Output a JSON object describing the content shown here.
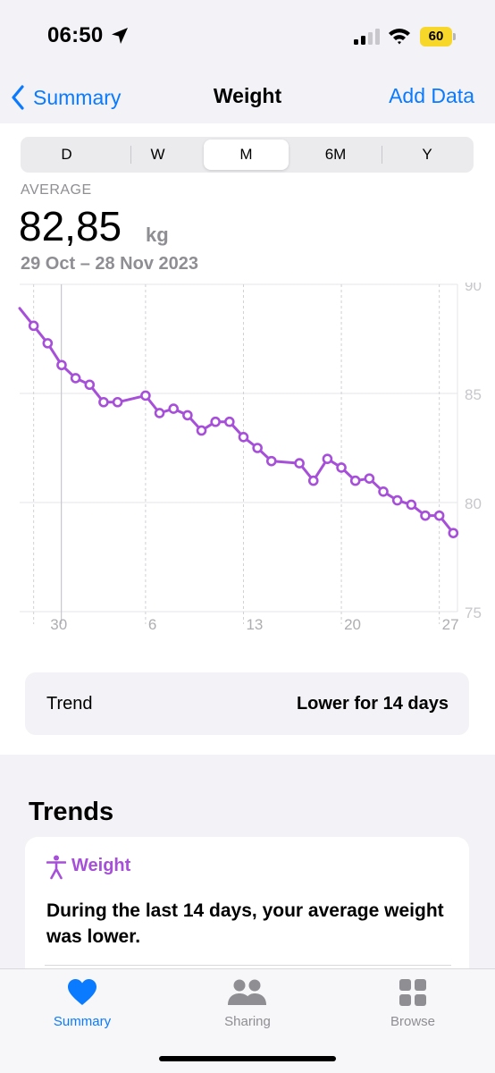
{
  "status": {
    "time": "06:50",
    "battery": "60"
  },
  "nav": {
    "back_label": "Summary",
    "title": "Weight",
    "add_label": "Add Data"
  },
  "segments": [
    "D",
    "W",
    "M",
    "6M",
    "Y"
  ],
  "selected_segment": "M",
  "summary": {
    "label": "AVERAGE",
    "value": "82,85",
    "unit": "kg",
    "range": "29 Oct – 28 Nov 2023"
  },
  "chart_data": {
    "type": "line",
    "x": [
      "28 Oct",
      "29 Oct",
      "30 Oct",
      "31 Oct",
      "1 Nov",
      "2 Nov",
      "3 Nov",
      "4 Nov",
      "5 Nov",
      "6 Nov",
      "7 Nov",
      "8 Nov",
      "9 Nov",
      "10 Nov",
      "11 Nov",
      "12 Nov",
      "13 Nov",
      "14 Nov",
      "15 Nov",
      "16 Nov",
      "17 Nov",
      "18 Nov",
      "19 Nov",
      "20 Nov",
      "21 Nov",
      "22 Nov",
      "23 Nov",
      "24 Nov",
      "25 Nov",
      "26 Nov",
      "27 Nov",
      "28 Nov"
    ],
    "values": [
      88.9,
      88.1,
      87.3,
      86.3,
      85.7,
      85.4,
      84.6,
      84.6,
      null,
      84.9,
      84.1,
      84.3,
      84.0,
      83.3,
      83.7,
      83.7,
      83.0,
      82.5,
      81.9,
      null,
      81.8,
      81.0,
      82.0,
      81.6,
      81.0,
      81.1,
      80.5,
      80.1,
      79.9,
      79.4,
      79.4,
      78.6
    ],
    "points": [
      false,
      true,
      true,
      true,
      true,
      true,
      true,
      true,
      false,
      true,
      true,
      true,
      true,
      true,
      true,
      true,
      true,
      true,
      true,
      false,
      true,
      true,
      true,
      true,
      true,
      true,
      true,
      true,
      true,
      true,
      true,
      true
    ],
    "ylim": [
      75,
      90
    ],
    "yticks": [
      "90",
      "85",
      "80",
      "75"
    ],
    "xticks": [
      "30",
      "6",
      "13",
      "20",
      "27"
    ],
    "line_color": "#a64fd8",
    "grid": true
  },
  "trend": {
    "label": "Trend",
    "value": "Lower for 14 days"
  },
  "trends": {
    "heading": "Trends",
    "card_title": "Weight",
    "card_body": "During the last 14 days, your average weight was lower."
  },
  "tabs": [
    {
      "label": "Summary",
      "icon": "heart-icon",
      "active": true
    },
    {
      "label": "Sharing",
      "icon": "people-icon",
      "active": false
    },
    {
      "label": "Browse",
      "icon": "grid-icon",
      "active": false
    }
  ],
  "colors": {
    "accent": "#0a7aff",
    "weight": "#a64fd8",
    "battery": "#f8d72b"
  }
}
